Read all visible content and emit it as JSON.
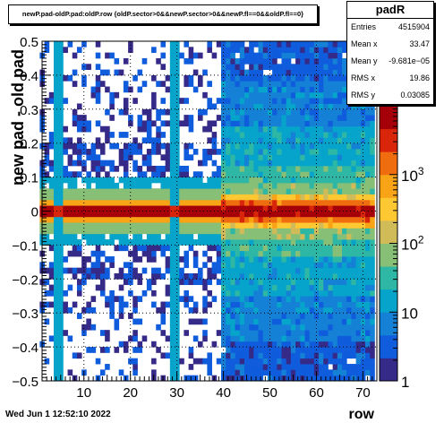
{
  "title": "newP.pad-oldP.pad:oldP.row {oldP.sector>0&&newP.sector>0&&newP.fl==0&&oldP.fl==0}",
  "date": "Wed Jun  1 12:52:10 2022",
  "stats": {
    "name": "padR",
    "rows": [
      {
        "label": "Entries",
        "value": "4515904"
      },
      {
        "label": "Mean x",
        "value": "33.47"
      },
      {
        "label": "Mean y",
        "value": "-9.681e−05"
      },
      {
        "label": "RMS x",
        "value": "19.86"
      },
      {
        "label": "RMS y",
        "value": "0.03085"
      }
    ]
  },
  "chart_data": {
    "type": "heatmap",
    "xlabel": "row",
    "ylabel": "new pad - old pad",
    "xlim": [
      1,
      73
    ],
    "ylim": [
      -0.5,
      0.5
    ],
    "x_ticks": [
      10,
      20,
      30,
      40,
      50,
      60,
      70
    ],
    "y_ticks": [
      -0.5,
      -0.4,
      -0.3,
      -0.2,
      -0.1,
      0,
      0.1,
      0.2,
      0.3,
      0.4,
      0.5
    ],
    "z_scale": "log",
    "zlim": [
      1,
      10000
    ],
    "z_tick_labels": [
      "1",
      "10",
      "10^2",
      "10^3"
    ],
    "grid": true,
    "palette": [
      "#352a87",
      "#0f5cdd",
      "#1481d6",
      "#06a4ca",
      "#2eb7a4",
      "#87bf77",
      "#d1bb59",
      "#fec832",
      "#f9a317",
      "#f06d0f",
      "#d9260b",
      "#a50009"
    ],
    "features": {
      "peak_y": 0,
      "peak_rows": [
        1,
        72
      ],
      "dense_region_rows": [
        40,
        72
      ],
      "empty_rows": [
        [
          4,
          5
        ],
        [
          29,
          30
        ]
      ],
      "sparse_region_rows": [
        1,
        40
      ]
    }
  }
}
